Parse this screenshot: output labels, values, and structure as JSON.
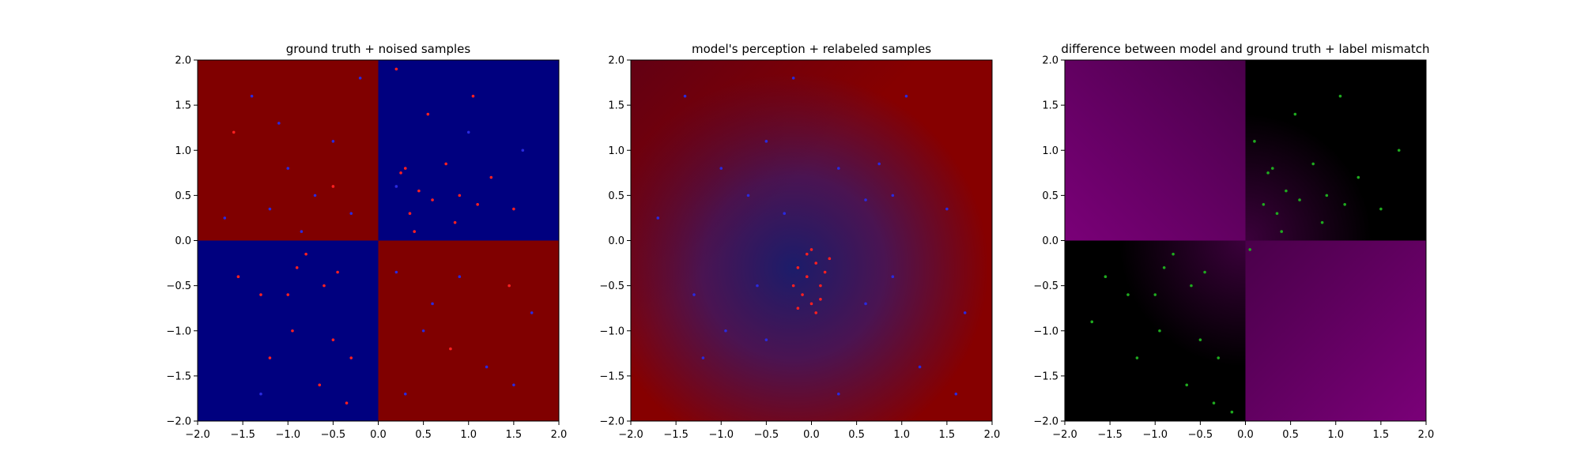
{
  "figure": {
    "background": "#ffffff"
  },
  "chart_data": [
    {
      "type": "scatter",
      "title": "ground truth + noised samples",
      "xlabel": "",
      "ylabel": "",
      "xlim": [
        -2.0,
        2.0
      ],
      "ylim": [
        -2.0,
        2.0
      ],
      "x_ticks": [
        "−2.0",
        "−1.5",
        "−1.0",
        "−0.5",
        "0.0",
        "0.5",
        "1.0",
        "1.5",
        "2.0"
      ],
      "y_ticks": [
        "−2.0",
        "−1.5",
        "−1.0",
        "−0.5",
        "0.0",
        "0.5",
        "1.0",
        "1.5",
        "2.0"
      ],
      "grid": false,
      "background": "quadrants",
      "quadrant_colors": {
        "x_neg_y_pos": "#800000",
        "x_pos_y_pos": "#00007f",
        "x_neg_y_neg": "#00007f",
        "x_pos_y_neg": "#800000"
      },
      "point_colors": {
        "red": "#ff2020",
        "blue": "#2a2adf"
      },
      "series": [
        {
          "color": "#ff2020",
          "points": [
            [
              0.3,
              0.8
            ],
            [
              0.25,
              0.75
            ],
            [
              0.45,
              0.55
            ],
            [
              0.6,
              0.45
            ],
            [
              0.9,
              0.5
            ],
            [
              1.1,
              0.4
            ],
            [
              0.35,
              0.3
            ],
            [
              0.75,
              0.85
            ],
            [
              1.25,
              0.7
            ],
            [
              0.4,
              0.1
            ],
            [
              0.55,
              1.4
            ],
            [
              1.05,
              1.6
            ],
            [
              0.2,
              1.9
            ],
            [
              1.5,
              0.35
            ],
            [
              0.85,
              0.2
            ],
            [
              -0.9,
              -0.3
            ],
            [
              -0.6,
              -0.5
            ],
            [
              -0.95,
              -1.0
            ],
            [
              -0.5,
              -1.1
            ],
            [
              -1.3,
              -0.6
            ],
            [
              -0.3,
              -1.3
            ],
            [
              -1.0,
              -0.6
            ],
            [
              -0.45,
              -0.35
            ],
            [
              -1.55,
              -0.4
            ],
            [
              -0.65,
              -1.6
            ],
            [
              -0.35,
              -1.8
            ],
            [
              -0.8,
              -0.15
            ],
            [
              -1.2,
              -1.3
            ],
            [
              1.45,
              -0.5
            ],
            [
              -0.5,
              0.6
            ],
            [
              0.8,
              -1.2
            ],
            [
              -1.6,
              1.2
            ]
          ]
        },
        {
          "color": "#2a2adf",
          "points": [
            [
              -1.0,
              0.8
            ],
            [
              -0.5,
              1.1
            ],
            [
              -1.4,
              1.6
            ],
            [
              -0.3,
              0.3
            ],
            [
              -0.7,
              0.5
            ],
            [
              -1.7,
              0.25
            ],
            [
              -0.2,
              1.8
            ],
            [
              -1.2,
              0.35
            ],
            [
              0.6,
              -0.7
            ],
            [
              1.2,
              -1.4
            ],
            [
              0.3,
              -1.7
            ],
            [
              1.7,
              -0.8
            ],
            [
              0.9,
              -0.4
            ],
            [
              0.2,
              -0.35
            ],
            [
              1.5,
              -1.6
            ],
            [
              0.5,
              -1.0
            ],
            [
              -1.1,
              1.3
            ],
            [
              -0.85,
              0.1
            ],
            [
              1.0,
              1.2
            ],
            [
              -1.3,
              -1.7
            ],
            [
              0.2,
              0.6
            ],
            [
              1.6,
              1.0
            ]
          ]
        }
      ]
    },
    {
      "type": "scatter",
      "title": "model's perception + relabeled samples",
      "xlabel": "",
      "ylabel": "",
      "xlim": [
        -2.0,
        2.0
      ],
      "ylim": [
        -2.0,
        2.0
      ],
      "x_ticks": [
        "−2.0",
        "−1.5",
        "−1.0",
        "−0.5",
        "0.0",
        "0.5",
        "1.0",
        "1.5",
        "2.0"
      ],
      "y_ticks": [
        "−2.0",
        "−1.5",
        "−1.0",
        "−0.5",
        "0.0",
        "0.5",
        "1.0",
        "1.5",
        "2.0"
      ],
      "grid": false,
      "background": "radial-model",
      "colors": {
        "center": "#1c1c6a",
        "mid": "#4a1452",
        "edge": "#860000",
        "corner": "#4a0020"
      },
      "point_colors": {
        "red": "#ff2020",
        "blue": "#2a2adf"
      },
      "series": [
        {
          "color": "#2a2adf",
          "points": [
            [
              -1.0,
              0.8
            ],
            [
              -0.5,
              1.1
            ],
            [
              -1.4,
              1.6
            ],
            [
              -0.3,
              0.3
            ],
            [
              -0.7,
              0.5
            ],
            [
              -1.7,
              0.25
            ],
            [
              0.6,
              -0.7
            ],
            [
              1.2,
              -1.4
            ],
            [
              0.3,
              -1.7
            ],
            [
              1.7,
              -0.8
            ],
            [
              0.9,
              -0.4
            ],
            [
              0.3,
              0.8
            ],
            [
              0.6,
              0.45
            ],
            [
              0.9,
              0.5
            ],
            [
              -0.6,
              -0.5
            ],
            [
              -0.95,
              -1.0
            ],
            [
              -1.3,
              -0.6
            ],
            [
              -0.5,
              -1.1
            ],
            [
              1.05,
              1.6
            ],
            [
              0.75,
              0.85
            ],
            [
              -1.2,
              -1.3
            ],
            [
              1.5,
              0.35
            ],
            [
              -0.2,
              1.8
            ],
            [
              1.6,
              -1.7
            ]
          ]
        },
        {
          "color": "#ff2020",
          "points": [
            [
              0.0,
              -0.1
            ],
            [
              0.05,
              -0.25
            ],
            [
              -0.05,
              -0.4
            ],
            [
              0.1,
              -0.5
            ],
            [
              -0.1,
              -0.6
            ],
            [
              0.0,
              -0.7
            ],
            [
              -0.15,
              -0.3
            ],
            [
              0.15,
              -0.35
            ],
            [
              -0.2,
              -0.5
            ],
            [
              0.05,
              -0.8
            ],
            [
              0.2,
              -0.2
            ],
            [
              -0.05,
              -0.15
            ],
            [
              0.1,
              -0.65
            ],
            [
              -0.15,
              -0.75
            ]
          ]
        }
      ]
    },
    {
      "type": "scatter",
      "title": "difference between model and ground truth + label mismatch",
      "xlabel": "",
      "ylabel": "",
      "xlim": [
        -2.0,
        2.0
      ],
      "ylim": [
        -2.0,
        2.0
      ],
      "x_ticks": [
        "−2.0",
        "−1.5",
        "−1.0",
        "−0.5",
        "0.0",
        "0.5",
        "1.0",
        "1.5",
        "2.0"
      ],
      "y_ticks": [
        "−2.0",
        "−1.5",
        "−1.0",
        "−0.5",
        "0.0",
        "0.5",
        "1.0",
        "1.5",
        "2.0"
      ],
      "grid": false,
      "background": "difference",
      "colors": {
        "dark": "#000000",
        "magenta": "#7a0078",
        "magenta_dim": "#4a004a"
      },
      "point_colors": {
        "green": "#1faa1f"
      },
      "series": [
        {
          "color": "#1faa1f",
          "points": [
            [
              0.3,
              0.8
            ],
            [
              0.25,
              0.75
            ],
            [
              0.45,
              0.55
            ],
            [
              0.6,
              0.45
            ],
            [
              0.9,
              0.5
            ],
            [
              1.1,
              0.4
            ],
            [
              0.35,
              0.3
            ],
            [
              0.75,
              0.85
            ],
            [
              1.25,
              0.7
            ],
            [
              0.4,
              0.1
            ],
            [
              0.55,
              1.4
            ],
            [
              1.05,
              1.6
            ],
            [
              1.5,
              0.35
            ],
            [
              0.85,
              0.2
            ],
            [
              0.1,
              1.1
            ],
            [
              0.2,
              0.4
            ],
            [
              1.7,
              1.0
            ],
            [
              0.05,
              -0.1
            ],
            [
              -0.9,
              -0.3
            ],
            [
              -0.6,
              -0.5
            ],
            [
              -0.95,
              -1.0
            ],
            [
              -0.5,
              -1.1
            ],
            [
              -1.3,
              -0.6
            ],
            [
              -0.3,
              -1.3
            ],
            [
              -1.0,
              -0.6
            ],
            [
              -0.45,
              -0.35
            ],
            [
              -1.55,
              -0.4
            ],
            [
              -0.65,
              -1.6
            ],
            [
              -0.35,
              -1.8
            ],
            [
              -0.8,
              -0.15
            ],
            [
              -1.2,
              -1.3
            ],
            [
              -1.7,
              -0.9
            ],
            [
              -0.15,
              -1.9
            ]
          ]
        }
      ]
    }
  ]
}
